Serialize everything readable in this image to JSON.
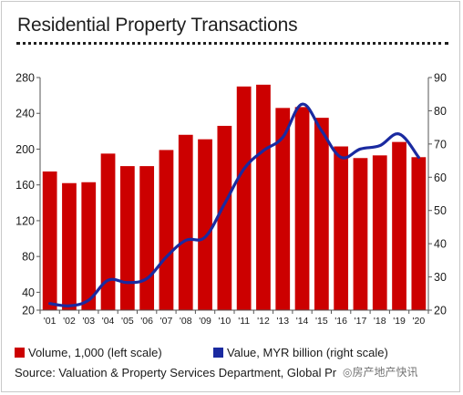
{
  "chart_data": {
    "type": "bar",
    "title": "Residential Property Transactions",
    "categories": [
      "'01",
      "'02",
      "'03",
      "'04",
      "'05",
      "'06",
      "'07",
      "'08",
      "'09",
      "'10",
      "'11",
      "'12",
      "'13",
      "'14",
      "'15",
      "'16",
      "'17",
      "'18",
      "'19",
      "'20"
    ],
    "series": [
      {
        "name": "Volume, 1,000 (left scale)",
        "type": "bar",
        "axis": "left",
        "color": "#cc0000",
        "values": [
          175,
          162,
          163,
          195,
          181,
          181,
          199,
          216,
          211,
          226,
          270,
          272,
          246,
          247,
          235,
          203,
          190,
          193,
          208,
          191
        ]
      },
      {
        "name": "Value, MYR billion  (right scale)",
        "type": "line",
        "axis": "right",
        "color": "#1a2aa0",
        "values": [
          22,
          21.3,
          23,
          29,
          28.3,
          29.5,
          36,
          41,
          42,
          52,
          62.5,
          68,
          72,
          82,
          74,
          66,
          68.5,
          69.5,
          73,
          66
        ]
      }
    ],
    "y_left": {
      "min": 20,
      "max": 280,
      "ticks": [
        "20",
        "40",
        "80",
        "120",
        "160",
        "200",
        "240",
        "280"
      ]
    },
    "y_right": {
      "min": 20,
      "max": 90,
      "ticks": [
        "20",
        "30",
        "40",
        "50",
        "60",
        "70",
        "80",
        "90"
      ]
    },
    "grid": false,
    "legend_position": "bottom"
  },
  "legend": {
    "volume_label": "Volume, 1,000 (left scale)",
    "value_label": "Value, MYR billion  (right scale)"
  },
  "source": {
    "text": "Source: Valuation & Property Services Department, Global Pr"
  },
  "watermark": {
    "text": "◎房产地产快讯"
  },
  "colors": {
    "bar": "#cc0000",
    "line": "#1a2aa0",
    "axis": "#555555"
  }
}
